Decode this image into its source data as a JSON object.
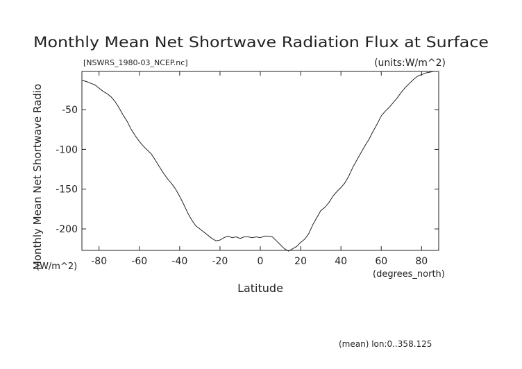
{
  "chart_data": {
    "type": "line",
    "title": "Monthly Mean Net Shortwave Radiation Flux at Surface",
    "subtitle_left": "[NSWRS_1980-03_NCEP.nc]",
    "subtitle_right": "(units:W/m^2)",
    "xlabel": "Latitude",
    "xunits": "(degrees_north)",
    "ylabel": "Monthly Mean Net Shortwave Radio",
    "yunits": "(W/m^2)",
    "footnote": "(mean) lon:0..358.125",
    "xlim": [
      -88.5,
      88.5
    ],
    "ylim": [
      -227,
      -2
    ],
    "xticks": [
      -80,
      -60,
      -40,
      -20,
      0,
      20,
      40,
      60,
      80
    ],
    "yticks": [
      -50,
      -100,
      -150,
      -200
    ],
    "grid": false,
    "series": [
      {
        "x": [
          -88.5,
          -86,
          -84,
          -82,
          -80,
          -78,
          -76,
          -74,
          -72,
          -70,
          -68,
          -66,
          -64,
          -62,
          -60,
          -58,
          -56,
          -54,
          -52,
          -50,
          -48,
          -46,
          -44,
          -42,
          -40,
          -38,
          -36,
          -34,
          -32,
          -30,
          -28,
          -26,
          -24,
          -22,
          -20,
          -18,
          -16,
          -14,
          -12,
          -10,
          -8,
          -6,
          -4,
          -2,
          0,
          2,
          4,
          6,
          8,
          10,
          12,
          14,
          16,
          18,
          20,
          22,
          24,
          26,
          28,
          30,
          32,
          34,
          36,
          38,
          40,
          42,
          44,
          46,
          48,
          50,
          52,
          54,
          56,
          58,
          60,
          62,
          64,
          66,
          68,
          70,
          72,
          74,
          76,
          78,
          80,
          82,
          84,
          86,
          88.5
        ],
        "y": [
          -13,
          -15,
          -17,
          -19,
          -23,
          -27,
          -30,
          -34,
          -40,
          -48,
          -57,
          -65,
          -75,
          -83,
          -90,
          -96,
          -101,
          -106,
          -114,
          -122,
          -130,
          -137,
          -143,
          -150,
          -159,
          -169,
          -180,
          -189,
          -196,
          -200,
          -204,
          -208,
          -212,
          -215,
          -214,
          -211,
          -209,
          -211,
          -210,
          -212,
          -210,
          -210,
          -211,
          -210,
          -211,
          -209,
          -209,
          -210,
          -215,
          -220,
          -225,
          -228,
          -225,
          -222,
          -217,
          -213,
          -206,
          -195,
          -186,
          -177,
          -173,
          -167,
          -159,
          -153,
          -148,
          -142,
          -133,
          -122,
          -113,
          -104,
          -95,
          -87,
          -77,
          -68,
          -58,
          -52,
          -47,
          -41,
          -35,
          -28,
          -22,
          -17,
          -12,
          -8,
          -6,
          -4,
          -3,
          -2,
          -2
        ]
      }
    ]
  }
}
